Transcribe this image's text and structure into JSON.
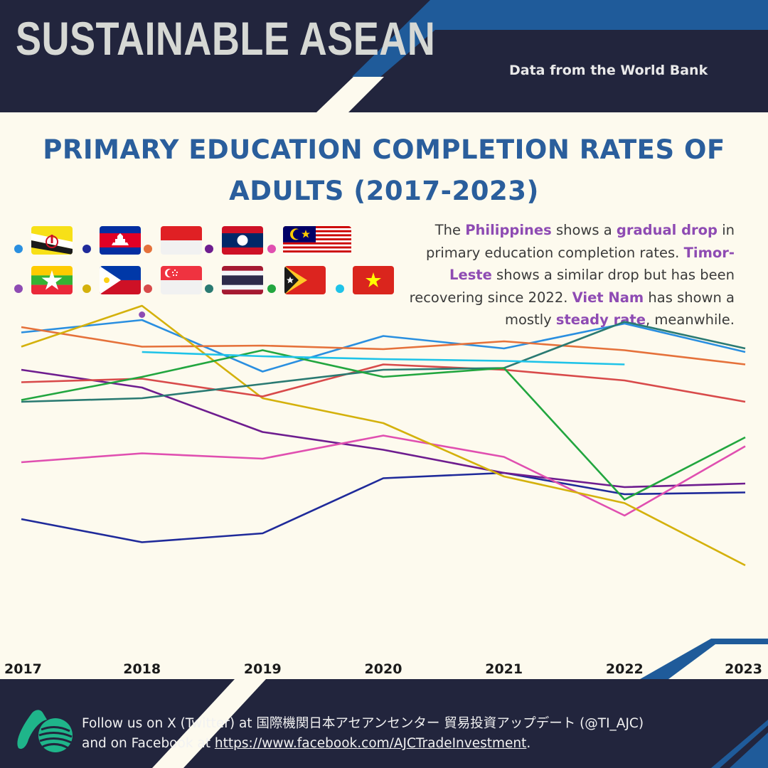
{
  "header": {
    "brand": "SUSTAINABLE ASEAN",
    "source": "Data from the World Bank"
  },
  "colors": {
    "navy": "#22253d",
    "blue_band": "#1f5b9a",
    "background": "#fdfaee",
    "title": "#2a5e9c",
    "highlight": "#8e4bb3"
  },
  "note": {
    "p1": "The ",
    "h1": "Philippines",
    "p2": " shows a ",
    "h2": "gradual drop",
    "p3": " in primary education completion rates. ",
    "h3": "Timor-Leste",
    "p4": " shows a similar drop but has been recovering since 2022. ",
    "h4": "Viet Nam",
    "p5": " has shown a mostly ",
    "h5": "steady rate",
    "p6": ", meanwhile."
  },
  "legend": [
    {
      "country": "Brunei",
      "flag_icon": "brunei-flag-icon",
      "color": "#2a8fe0"
    },
    {
      "country": "Cambodia",
      "flag_icon": "cambodia-flag-icon",
      "color": "#1f2a9a"
    },
    {
      "country": "Indonesia",
      "flag_icon": "indonesia-flag-icon",
      "color": "#e5713a"
    },
    {
      "country": "Laos",
      "flag_icon": "laos-flag-icon",
      "color": "#6e1d8f"
    },
    {
      "country": "Malaysia",
      "flag_icon": "malaysia-flag-icon",
      "color": "#e04fb0"
    },
    {
      "country": "Myanmar",
      "flag_icon": "myanmar-flag-icon",
      "color": "#8e4bb3"
    },
    {
      "country": "Philippines",
      "flag_icon": "philippines-flag-icon",
      "color": "#d4b10c"
    },
    {
      "country": "Singapore",
      "flag_icon": "singapore-flag-icon",
      "color": "#d84a4a"
    },
    {
      "country": "Thailand",
      "flag_icon": "thailand-flag-icon",
      "color": "#2a7a72"
    },
    {
      "country": "Timor-Leste",
      "flag_icon": "timor-leste-flag-icon",
      "color": "#22a63f"
    },
    {
      "country": "Viet Nam",
      "flag_icon": "vietnam-flag-icon",
      "color": "#1fc3e8"
    }
  ],
  "chart_data": {
    "type": "line",
    "title": "PRIMARY EDUCATION COMPLETION RATES OF ADULTS (2017-2023)",
    "x": [
      "2017",
      "2018",
      "2019",
      "2020",
      "2021",
      "2022",
      "2023"
    ],
    "y_axis_visible": false,
    "grid": false,
    "ylim": [
      0,
      100
    ],
    "series": [
      {
        "name": "Brunei",
        "color": "#2a8fe0",
        "values": [
          90.5,
          94,
          79.5,
          89.5,
          86,
          93,
          85
        ]
      },
      {
        "name": "Cambodia",
        "color": "#1f2a9a",
        "values": [
          38,
          31.5,
          34,
          49.5,
          51,
          45,
          45.5
        ]
      },
      {
        "name": "Indonesia",
        "color": "#e5713a",
        "values": [
          92,
          86.5,
          86.8,
          85.8,
          88,
          85.5,
          81.5
        ]
      },
      {
        "name": "Laos",
        "color": "#6e1d8f",
        "values": [
          80,
          75,
          62.5,
          57.5,
          51,
          47,
          48
        ]
      },
      {
        "name": "Malaysia",
        "color": "#e04fb0",
        "values": [
          54,
          56.5,
          55,
          61.5,
          55.5,
          39,
          58.5
        ]
      },
      {
        "name": "Myanmar",
        "color": "#8e4bb3",
        "values": [
          null,
          95.5,
          null,
          null,
          null,
          null,
          null
        ]
      },
      {
        "name": "Philippines",
        "color": "#d4b10c",
        "values": [
          86.5,
          98,
          72,
          65,
          50,
          42.5,
          25
        ]
      },
      {
        "name": "Singapore",
        "color": "#d84a4a",
        "values": [
          76.5,
          77.5,
          72.5,
          81.5,
          80,
          77,
          71
        ]
      },
      {
        "name": "Thailand",
        "color": "#2a7a72",
        "values": [
          71,
          72,
          76,
          80,
          80.5,
          93.5,
          86
        ]
      },
      {
        "name": "Timor-Leste",
        "color": "#22a63f",
        "values": [
          71.5,
          78,
          85.5,
          78,
          80.5,
          43.5,
          61
        ]
      },
      {
        "name": "Viet Nam",
        "color": "#1fc3e8",
        "values": [
          null,
          85,
          83.8,
          83,
          82.5,
          81.5,
          null
        ]
      }
    ]
  },
  "footer": {
    "line1": "Follow us on X (Twitter) at 国際機関日本アセアンセンター 貿易投資アップデート (@TI_AJC)",
    "line2_prefix": "and on Facebook at ",
    "link": "https://www.facebook.com/AJCTradeInvestment",
    "line2_suffix": "."
  }
}
